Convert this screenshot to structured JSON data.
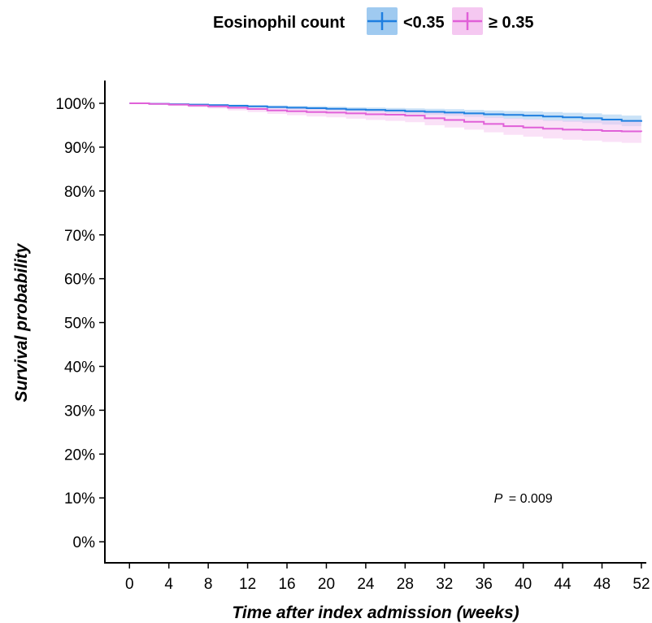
{
  "chart_data": {
    "type": "line",
    "xlabel": "Time after index admission (weeks)",
    "ylabel": "Survival probability",
    "xticks": [
      0,
      4,
      8,
      12,
      16,
      20,
      24,
      28,
      32,
      36,
      40,
      44,
      48,
      52
    ],
    "yticks": [
      0,
      10,
      20,
      30,
      40,
      50,
      60,
      70,
      80,
      90,
      100
    ],
    "ytick_suffix": "%",
    "xlim": [
      -2.5,
      52.5
    ],
    "ylim": [
      -4.8,
      105.2
    ],
    "grid": false,
    "legend": {
      "title": "Eosinophil count",
      "position": "top"
    },
    "annotation": {
      "p_label": "P",
      "p_value": "= 0.009",
      "x": 40,
      "y": 10
    },
    "series": [
      {
        "name": "<0.35",
        "color": "#1f7fe0",
        "band_color": "#9fcaf0",
        "x": [
          0,
          2,
          4,
          6,
          8,
          10,
          12,
          14,
          16,
          18,
          20,
          22,
          24,
          26,
          28,
          30,
          32,
          34,
          36,
          38,
          40,
          42,
          44,
          46,
          48,
          50,
          52
        ],
        "y": [
          100,
          99.9,
          99.8,
          99.7,
          99.6,
          99.45,
          99.3,
          99.15,
          99.0,
          98.9,
          98.75,
          98.6,
          98.5,
          98.35,
          98.2,
          98.05,
          97.9,
          97.7,
          97.5,
          97.35,
          97.2,
          97.0,
          96.8,
          96.6,
          96.3,
          96.0,
          95.8
        ],
        "lower": [
          100,
          99.85,
          99.7,
          99.55,
          99.4,
          99.2,
          99.0,
          98.8,
          98.6,
          98.45,
          98.3,
          98.1,
          97.95,
          97.75,
          97.55,
          97.35,
          97.15,
          96.9,
          96.65,
          96.45,
          96.25,
          96.0,
          95.75,
          95.5,
          95.15,
          94.8,
          94.55
        ],
        "upper": [
          100,
          99.95,
          99.9,
          99.85,
          99.8,
          99.7,
          99.6,
          99.5,
          99.4,
          99.35,
          99.2,
          99.1,
          99.05,
          98.95,
          98.85,
          98.75,
          98.65,
          98.5,
          98.35,
          98.25,
          98.15,
          98.0,
          97.85,
          97.7,
          97.45,
          97.2,
          97.05
        ]
      },
      {
        "name": "≥ 0.35",
        "color": "#e060d8",
        "band_color": "#f5c8f1",
        "x": [
          0,
          2,
          4,
          6,
          8,
          10,
          12,
          14,
          16,
          18,
          20,
          22,
          24,
          26,
          28,
          30,
          32,
          34,
          36,
          38,
          40,
          42,
          44,
          46,
          48,
          50,
          52
        ],
        "y": [
          100,
          99.85,
          99.7,
          99.5,
          99.3,
          99.0,
          98.7,
          98.4,
          98.2,
          98.0,
          97.9,
          97.7,
          97.5,
          97.4,
          97.2,
          96.6,
          96.2,
          95.8,
          95.3,
          94.8,
          94.5,
          94.2,
          94.0,
          93.9,
          93.7,
          93.6,
          93.5
        ],
        "lower": [
          100,
          99.7,
          99.4,
          99.1,
          98.8,
          98.4,
          98.0,
          97.6,
          97.3,
          97.0,
          96.8,
          96.5,
          96.2,
          96.0,
          95.7,
          95.0,
          94.5,
          94.0,
          93.4,
          92.8,
          92.4,
          92.0,
          91.7,
          91.5,
          91.2,
          91.0,
          90.8
        ],
        "upper": [
          100,
          99.95,
          99.9,
          99.8,
          99.7,
          99.5,
          99.3,
          99.1,
          99.0,
          98.9,
          98.85,
          98.7,
          98.6,
          98.55,
          98.45,
          98.0,
          97.7,
          97.4,
          97.0,
          96.6,
          96.4,
          96.2,
          96.1,
          96.1,
          96.0,
          95.95,
          95.9
        ]
      }
    ]
  }
}
